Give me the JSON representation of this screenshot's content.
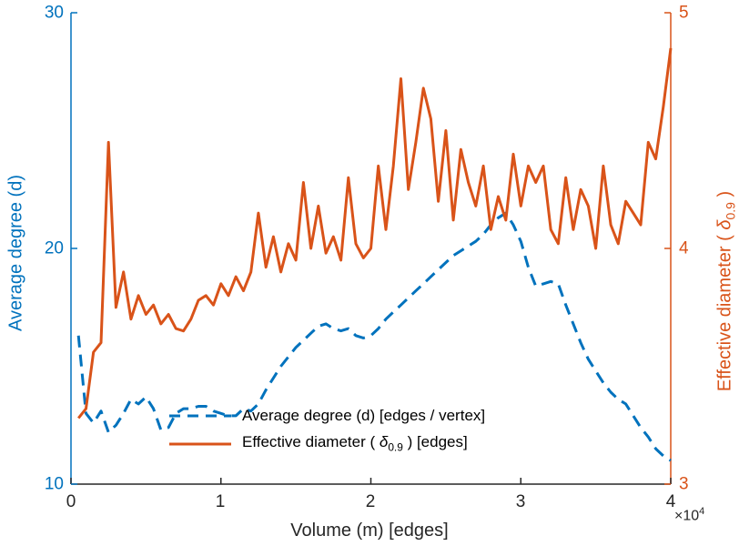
{
  "colors": {
    "blue": "#0072BD",
    "orange": "#D95319",
    "axis_black": "#262626"
  },
  "chart_data": {
    "type": "line",
    "title": "",
    "xlabel": "Volume (m) [edges]",
    "x_exponent_prefix": "×10",
    "x_exponent": "4",
    "ylabel_left": "Average degree (d)",
    "ylabel_right_pre": "Effective diameter (  ",
    "ylabel_right_symbol": "δ",
    "ylabel_right_sub": "0.9",
    "ylabel_right_post": " )",
    "xlim": [
      0,
      4
    ],
    "ylim_left": [
      10,
      30
    ],
    "ylim_right": [
      3,
      5
    ],
    "x_ticks": [
      "0",
      "1",
      "2",
      "3",
      "4"
    ],
    "y_ticks_left": [
      "10",
      "20",
      "30"
    ],
    "y_ticks_right": [
      "3",
      "4",
      "5"
    ],
    "x_tick_values": [
      0,
      1,
      2,
      3,
      4
    ],
    "y_tick_values_left": [
      10,
      20,
      30
    ],
    "y_tick_values_right": [
      3,
      4,
      5
    ],
    "grid": false,
    "legend_position": "inside-bottom-center",
    "series": [
      {
        "name": "Average degree (d) [edges / vertex]",
        "axis": "left",
        "style": "dashed",
        "color": "#0072BD",
        "x": [
          0.05,
          0.1,
          0.15,
          0.2,
          0.25,
          0.3,
          0.35,
          0.4,
          0.45,
          0.5,
          0.55,
          0.6,
          0.65,
          0.7,
          0.75,
          0.8,
          0.85,
          0.9,
          0.95,
          1.0,
          1.05,
          1.1,
          1.15,
          1.2,
          1.25,
          1.3,
          1.35,
          1.4,
          1.45,
          1.5,
          1.55,
          1.6,
          1.65,
          1.7,
          1.75,
          1.8,
          1.85,
          1.9,
          1.95,
          2.0,
          2.05,
          2.1,
          2.15,
          2.2,
          2.25,
          2.3,
          2.35,
          2.4,
          2.45,
          2.5,
          2.55,
          2.6,
          2.65,
          2.7,
          2.75,
          2.8,
          2.85,
          2.9,
          2.95,
          3.0,
          3.05,
          3.1,
          3.15,
          3.2,
          3.25,
          3.3,
          3.35,
          3.4,
          3.45,
          3.5,
          3.55,
          3.6,
          3.65,
          3.7,
          3.75,
          3.8,
          3.85,
          3.9,
          3.95,
          4.0
        ],
        "y": [
          16.3,
          13.0,
          12.6,
          13.1,
          12.2,
          12.5,
          13.0,
          13.6,
          13.4,
          13.7,
          13.2,
          12.3,
          12.4,
          13.0,
          13.2,
          13.2,
          13.3,
          13.3,
          13.1,
          13.0,
          12.9,
          12.9,
          13.2,
          13.1,
          13.4,
          14.0,
          14.5,
          15.0,
          15.4,
          15.8,
          16.1,
          16.4,
          16.7,
          16.8,
          16.6,
          16.5,
          16.6,
          16.3,
          16.2,
          16.3,
          16.6,
          17.0,
          17.3,
          17.6,
          17.9,
          18.2,
          18.5,
          18.8,
          19.1,
          19.4,
          19.7,
          19.9,
          20.1,
          20.3,
          20.6,
          21.0,
          21.3,
          21.5,
          21.0,
          20.3,
          19.2,
          18.4,
          18.5,
          18.6,
          18.5,
          17.6,
          16.8,
          16.0,
          15.3,
          14.8,
          14.3,
          13.9,
          13.6,
          13.4,
          12.9,
          12.4,
          12.0,
          11.5,
          11.2,
          11.0
        ]
      },
      {
        "name": "Effective diameter (δ0.9) [edges]",
        "axis": "right",
        "style": "solid",
        "color": "#D95319",
        "x": [
          0.05,
          0.1,
          0.15,
          0.2,
          0.25,
          0.3,
          0.35,
          0.4,
          0.45,
          0.5,
          0.55,
          0.6,
          0.65,
          0.7,
          0.75,
          0.8,
          0.85,
          0.9,
          0.95,
          1.0,
          1.05,
          1.1,
          1.15,
          1.2,
          1.25,
          1.3,
          1.35,
          1.4,
          1.45,
          1.5,
          1.55,
          1.6,
          1.65,
          1.7,
          1.75,
          1.8,
          1.85,
          1.9,
          1.95,
          2.0,
          2.05,
          2.1,
          2.15,
          2.2,
          2.25,
          2.3,
          2.35,
          2.4,
          2.45,
          2.5,
          2.55,
          2.6,
          2.65,
          2.7,
          2.75,
          2.8,
          2.85,
          2.9,
          2.95,
          3.0,
          3.05,
          3.1,
          3.15,
          3.2,
          3.25,
          3.3,
          3.35,
          3.4,
          3.45,
          3.5,
          3.55,
          3.6,
          3.65,
          3.7,
          3.75,
          3.8,
          3.85,
          3.9,
          3.95,
          4.0
        ],
        "y": [
          3.28,
          3.32,
          3.56,
          3.6,
          4.45,
          3.75,
          3.9,
          3.7,
          3.8,
          3.72,
          3.76,
          3.68,
          3.72,
          3.66,
          3.65,
          3.7,
          3.78,
          3.8,
          3.76,
          3.85,
          3.8,
          3.88,
          3.82,
          3.9,
          4.15,
          3.92,
          4.05,
          3.9,
          4.02,
          3.95,
          4.28,
          4.0,
          4.18,
          3.98,
          4.05,
          3.95,
          4.3,
          4.02,
          3.96,
          4.0,
          4.35,
          4.08,
          4.35,
          4.72,
          4.25,
          4.45,
          4.68,
          4.55,
          4.2,
          4.5,
          4.12,
          4.42,
          4.28,
          4.18,
          4.35,
          4.08,
          4.22,
          4.12,
          4.4,
          4.18,
          4.35,
          4.28,
          4.35,
          4.08,
          4.02,
          4.3,
          4.08,
          4.25,
          4.18,
          4.0,
          4.35,
          4.1,
          4.02,
          4.2,
          4.15,
          4.1,
          4.45,
          4.38,
          4.6,
          4.85
        ]
      }
    ]
  },
  "legend": {
    "item1_label": "Average degree (d) [edges / vertex]",
    "item2_pre": "Effective diameter (  ",
    "item2_symbol": "δ",
    "item2_sub": "0.9",
    "item2_post": " ) [edges]"
  }
}
